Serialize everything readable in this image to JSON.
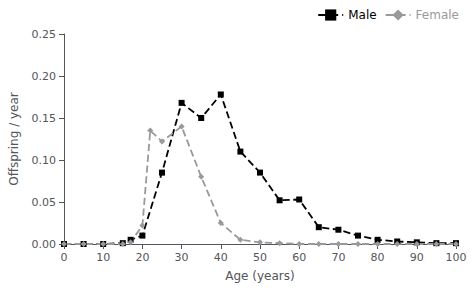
{
  "chart_data": {
    "type": "line",
    "xlabel": "Age (years)",
    "ylabel": "Offspring / year",
    "series": [
      {
        "name": "Male",
        "color": "#000000",
        "marker": "square",
        "line_style": "dashed",
        "x": [
          0,
          5,
          10,
          15,
          17,
          20,
          25,
          30,
          35,
          40,
          45,
          50,
          55,
          60,
          65,
          70,
          75,
          80,
          85,
          90,
          95,
          100
        ],
        "values": [
          0.0,
          0.0,
          0.0,
          0.001,
          0.005,
          0.01,
          0.085,
          0.168,
          0.15,
          0.178,
          0.11,
          0.085,
          0.052,
          0.053,
          0.02,
          0.017,
          0.01,
          0.005,
          0.003,
          0.002,
          0.001,
          0.001
        ]
      },
      {
        "name": "Female",
        "color": "#999999",
        "marker": "diamond",
        "line_style": "dashed",
        "x": [
          0,
          5,
          10,
          15,
          17,
          20,
          22,
          25,
          30,
          35,
          40,
          45,
          50,
          55,
          60,
          65,
          70,
          75,
          80,
          85,
          90,
          95,
          100
        ],
        "values": [
          0.0,
          0.0,
          0.0,
          0.0,
          0.002,
          0.022,
          0.135,
          0.122,
          0.14,
          0.08,
          0.025,
          0.005,
          0.002,
          0.001,
          0.0,
          0.0,
          0.0,
          0.0,
          0.0,
          0.0,
          0.0,
          0.0,
          0.0
        ]
      }
    ],
    "xlim": [
      0,
      100
    ],
    "xticks": [
      0,
      10,
      20,
      30,
      40,
      50,
      60,
      70,
      80,
      90,
      100
    ],
    "ylim": [
      0,
      0.25
    ],
    "yticks": [
      {
        "value": 0,
        "label": "0.00"
      },
      0.05,
      {
        "value": 0.1,
        "label": "0.10"
      },
      0.15,
      {
        "value": 0.2,
        "label": "0.20"
      },
      0.25
    ],
    "grid": false,
    "legend": "upper right"
  }
}
